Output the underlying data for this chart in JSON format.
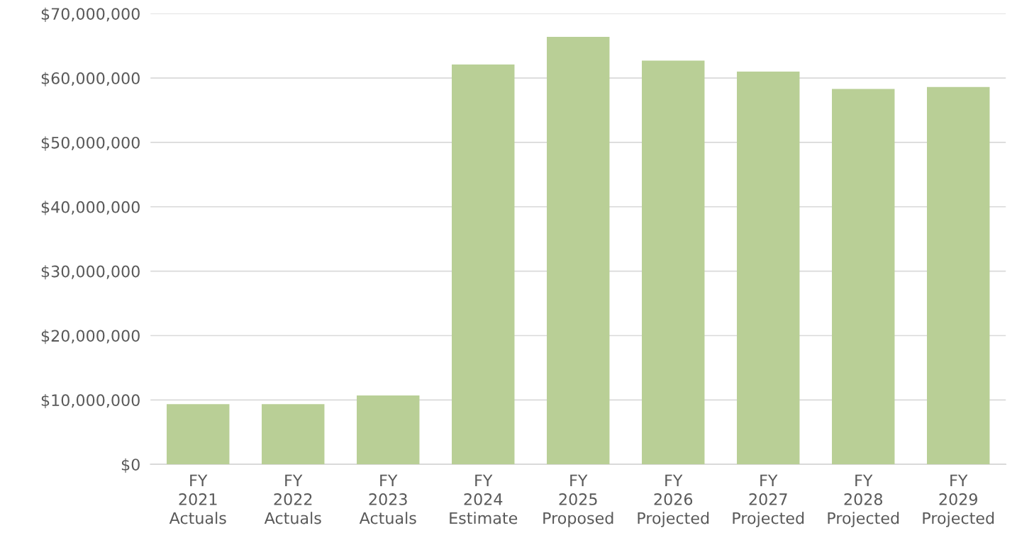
{
  "chart_data": {
    "type": "bar",
    "categories": [
      "FY\n2021\nActuals",
      "FY\n2022\nActuals",
      "FY\n2023\nActuals",
      "FY\n2024\nEstimate",
      "FY\n2025\nProposed",
      "FY\n2026\nProjected",
      "FY\n2027\nProjected",
      "FY\n2028\nProjected",
      "FY\n2029\nProjected"
    ],
    "values": [
      9350000,
      9350000,
      10700000,
      62100000,
      66400000,
      62700000,
      61000000,
      58300000,
      58600000
    ],
    "color": "#b9cf96",
    "ylim": [
      0,
      70000000
    ],
    "yticks": [
      {
        "value": 0,
        "label": "$0"
      },
      {
        "value": 10000000,
        "label": "$10,000,000"
      },
      {
        "value": 20000000,
        "label": "$20,000,000"
      },
      {
        "value": 30000000,
        "label": "$30,000,000"
      },
      {
        "value": 40000000,
        "label": "$40,000,000"
      },
      {
        "value": 50000000,
        "label": "$50,000,000"
      },
      {
        "value": 60000000,
        "label": "$60,000,000"
      },
      {
        "value": 70000000,
        "label": "$70,000,000"
      }
    ],
    "grid": "y"
  }
}
